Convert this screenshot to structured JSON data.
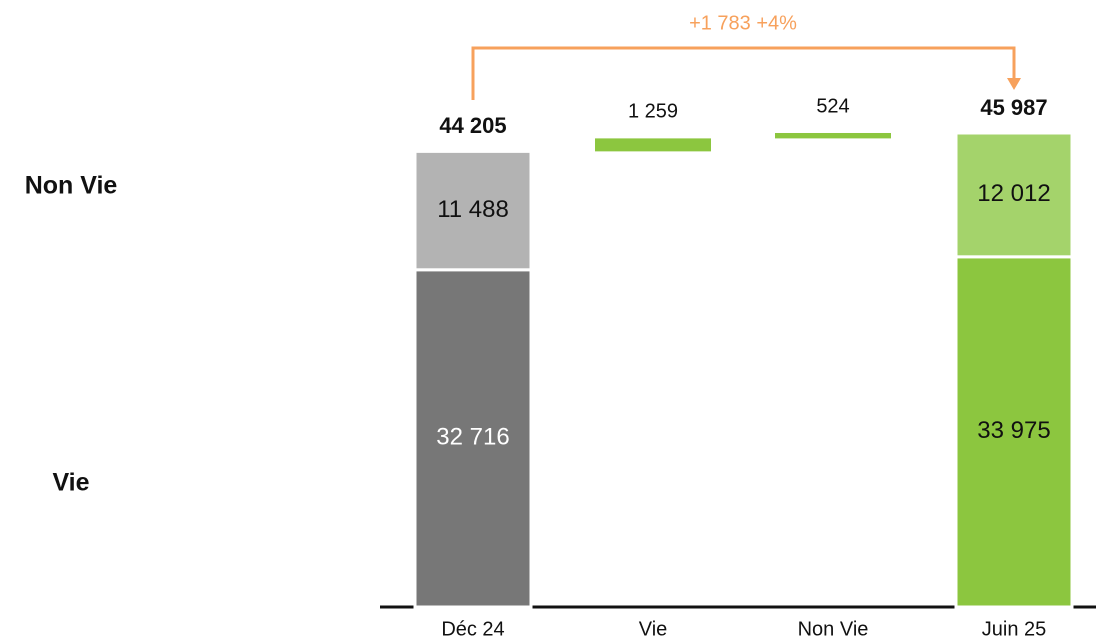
{
  "chart_data": {
    "type": "waterfall",
    "categories": [
      "Déc 24",
      "Vie",
      "Non Vie",
      "Juin 25"
    ],
    "series": [
      {
        "name": "Vie",
        "colors": [
          "#777777",
          null,
          null,
          "#8cc63f"
        ],
        "values": [
          32716,
          null,
          null,
          33975
        ],
        "value_labels": [
          "32 716",
          null,
          null,
          "33 975"
        ]
      },
      {
        "name": "Non Vie",
        "colors": [
          "#b3b3b3",
          null,
          null,
          "#a4d36b"
        ],
        "values": [
          11488,
          null,
          null,
          12012
        ],
        "value_labels": [
          "11 488",
          null,
          null,
          "12 012"
        ]
      }
    ],
    "totals": [
      44205,
      null,
      null,
      45987
    ],
    "total_labels": [
      "44 205",
      null,
      null,
      "45 987"
    ],
    "changes": [
      null,
      1259,
      524,
      null
    ],
    "change_labels": [
      null,
      "1 259",
      "524",
      null
    ],
    "change_color": "#8cc63f",
    "annotation": "+1 783 +4%",
    "annotation_color": "#f7a15c"
  }
}
